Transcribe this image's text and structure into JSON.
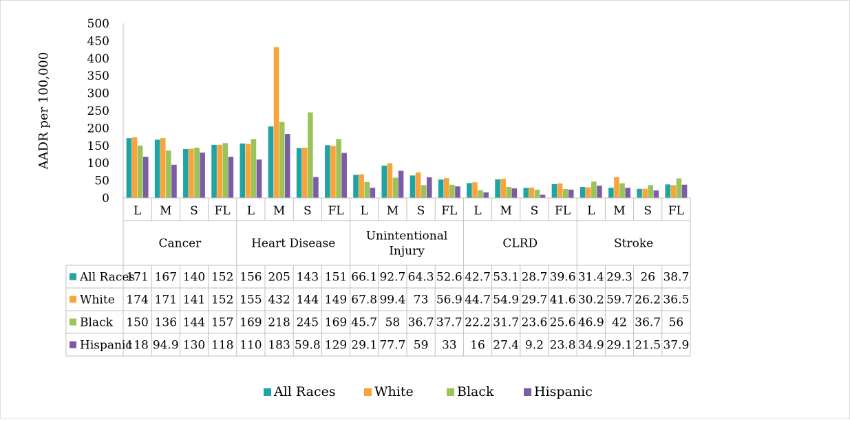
{
  "chart_data": {
    "type": "bar",
    "title": "",
    "xlabel": "",
    "ylabel": "AADR per 100,000",
    "ylim": [
      0,
      500
    ],
    "y_ticks": [
      "0",
      "50",
      "100",
      "150",
      "200",
      "250",
      "300",
      "350",
      "400",
      "450",
      "500"
    ],
    "grid": false,
    "legend_position": "bottom",
    "groups": [
      {
        "name": "Cancer",
        "display_lines": [
          "Cancer"
        ]
      },
      {
        "name": "Heart Disease",
        "display_lines": [
          "Heart Disease"
        ]
      },
      {
        "name": "Unintentional Injury",
        "display_lines": [
          "Unintentional",
          "Injury"
        ]
      },
      {
        "name": "CLRD",
        "display_lines": [
          "CLRD"
        ]
      },
      {
        "name": "Stroke",
        "display_lines": [
          "Stroke"
        ]
      }
    ],
    "subcategories": [
      "L",
      "M",
      "S",
      "FL"
    ],
    "series": [
      {
        "name": "All Races",
        "color": "#1fa3a3",
        "values": [
          171,
          167,
          140,
          152,
          156,
          205,
          143,
          151,
          66.1,
          92.7,
          64.3,
          52.6,
          42.7,
          53.1,
          28.7,
          39.6,
          31.4,
          29.3,
          26,
          38.7
        ],
        "labels": [
          "171",
          "167",
          "140",
          "152",
          "156",
          "205",
          "143",
          "151",
          "66.1",
          "92.7",
          "64.3",
          "52.6",
          "42.7",
          "53.1",
          "28.7",
          "39.6",
          "31.4",
          "29.3",
          "26",
          "38.7"
        ]
      },
      {
        "name": "White",
        "color": "#f8a43a",
        "values": [
          174,
          171,
          141,
          152,
          155,
          432,
          144,
          149,
          67.8,
          99.4,
          73,
          56.9,
          44.7,
          54.9,
          29.7,
          41.6,
          30.2,
          59.7,
          26.2,
          36.5
        ],
        "labels": [
          "174",
          "171",
          "141",
          "152",
          "155",
          "432",
          "144",
          "149",
          "67.8",
          "99.4",
          "73",
          "56.9",
          "44.7",
          "54.9",
          "29.7",
          "41.6",
          "30.2",
          "59.7",
          "26.2",
          "36.5"
        ]
      },
      {
        "name": "Black",
        "color": "#9bc35a",
        "values": [
          150,
          136,
          144,
          157,
          169,
          218,
          245,
          169,
          45.7,
          58,
          36.7,
          37.7,
          22.2,
          31.7,
          23.6,
          25.6,
          46.9,
          42,
          36.7,
          56
        ],
        "labels": [
          "150",
          "136",
          "144",
          "157",
          "169",
          "218",
          "245",
          "169",
          "45.7",
          "58",
          "36.7",
          "37.7",
          "22.2",
          "31.7",
          "23.6",
          "25.6",
          "46.9",
          "42",
          "36.7",
          "56"
        ]
      },
      {
        "name": "Hispanic",
        "color": "#7b5da6",
        "values": [
          118,
          94.9,
          130,
          118,
          110,
          183,
          59.8,
          129,
          29.1,
          77.7,
          59,
          33,
          16,
          27.4,
          9.2,
          23.8,
          34.9,
          29.1,
          21.5,
          37.9
        ],
        "labels": [
          "118",
          "94.9",
          "130",
          "118",
          "110",
          "183",
          "59.8",
          "129",
          "29.1",
          "77.7",
          "59",
          "33",
          "16",
          "27.4",
          "9.2",
          "23.8",
          "34.9",
          "29.1",
          "21.5",
          "37.9"
        ]
      }
    ]
  }
}
